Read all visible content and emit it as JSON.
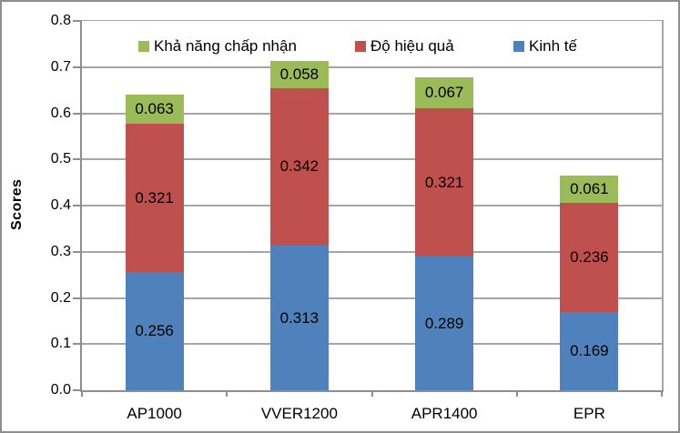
{
  "chart_data": {
    "type": "bar",
    "stacked": true,
    "title": "",
    "ylabel": "Scores",
    "xlabel": "",
    "ylim": [
      0,
      0.8
    ],
    "ytick_step": 0.1,
    "yticks": [
      "0.0",
      "0.1",
      "0.2",
      "0.3",
      "0.4",
      "0.5",
      "0.6",
      "0.7",
      "0.8"
    ],
    "grid": true,
    "legend_position": "top-inside-horizontal",
    "legend_order": [
      "Khả năng chấp nhận",
      "Độ hiệu quả",
      "Kinh tế"
    ],
    "categories": [
      "AP1000",
      "VVER1200",
      "APR1400",
      "EPR"
    ],
    "series": [
      {
        "name": "Kinh tế",
        "color": "#4f81bd",
        "values": [
          0.256,
          0.313,
          0.289,
          0.169
        ]
      },
      {
        "name": "Độ hiệu quả",
        "color": "#c0504d",
        "values": [
          0.321,
          0.342,
          0.321,
          0.236
        ]
      },
      {
        "name": "Khả năng chấp nhận",
        "color": "#9bbb59",
        "values": [
          0.063,
          0.058,
          0.067,
          0.061
        ]
      }
    ],
    "value_label_decimals": 3,
    "colors": {
      "gridline": "#a6a6a6",
      "axis": "#8e8e8e",
      "text": "#000000",
      "frame_border": "#8e8e8e",
      "background": "#ffffff"
    }
  }
}
